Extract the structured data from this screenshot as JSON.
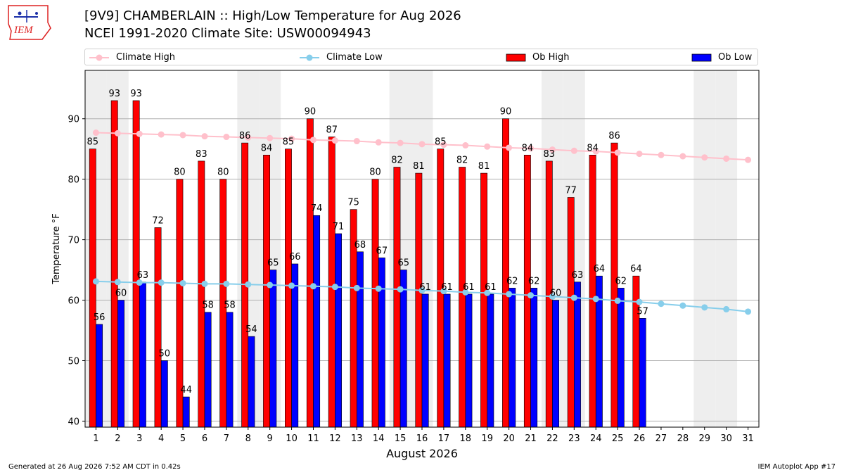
{
  "logo": {
    "text": "IEM"
  },
  "header": {
    "title_line1": "[9V9] CHAMBERLAIN :: High/Low Temperature for Aug 2026",
    "title_line2": "NCEI 1991-2020 Climate Site: USW00094943"
  },
  "legend": {
    "items": [
      "Climate High",
      "Climate Low",
      "Ob High",
      "Ob Low"
    ]
  },
  "footer": {
    "left": "Generated at 26 Aug 2026 7:52 AM CDT in 0.42s",
    "right": "IEM Autoplot App #17"
  },
  "chart_data": {
    "type": "bar",
    "xlabel": "August 2026",
    "ylabel": "Temperature °F",
    "ylim": [
      39,
      98
    ],
    "yticks": [
      40,
      50,
      60,
      70,
      80,
      90
    ],
    "days": [
      1,
      2,
      3,
      4,
      5,
      6,
      7,
      8,
      9,
      10,
      11,
      12,
      13,
      14,
      15,
      16,
      17,
      18,
      19,
      20,
      21,
      22,
      23,
      24,
      25,
      26,
      27,
      28,
      29,
      30,
      31
    ],
    "weekend_days": [
      1,
      2,
      8,
      9,
      15,
      16,
      22,
      23,
      29,
      30
    ],
    "grid": "horizontal",
    "legend_position": "top",
    "series": [
      {
        "name": "Ob High",
        "kind": "bar",
        "color": "#ff0000",
        "values": [
          85,
          93,
          93,
          72,
          80,
          83,
          80,
          86,
          84,
          85,
          90,
          87,
          75,
          80,
          82,
          81,
          85,
          82,
          81,
          90,
          84,
          83,
          77,
          84,
          86,
          64
        ],
        "labels": [
          "85",
          "93",
          "93",
          "72",
          "80",
          "83",
          "80",
          "86",
          "84",
          "85",
          "90",
          "87",
          "75",
          "80",
          "82",
          "81",
          "85",
          "82",
          "81",
          "90",
          "84",
          "83",
          "77",
          "84",
          "86",
          "64"
        ]
      },
      {
        "name": "Ob Low",
        "kind": "bar",
        "color": "#0000ff",
        "values": [
          56,
          60,
          63,
          50,
          44,
          58,
          58,
          54,
          65,
          66,
          74,
          71,
          68,
          67,
          65,
          61,
          61,
          61,
          61,
          62,
          62,
          60,
          63,
          64,
          62,
          57
        ],
        "labels": [
          "56",
          "60",
          "63",
          "50",
          "44",
          "58",
          "58",
          "54",
          "65",
          "66",
          "74",
          "71",
          "68",
          "67",
          "65",
          "61",
          "61",
          "61",
          "61",
          "62",
          "62",
          "60",
          "63",
          "64",
          "62",
          "57"
        ]
      },
      {
        "name": "Climate High",
        "kind": "line",
        "color": "#ffc0cb",
        "values": [
          87.7,
          87.6,
          87.5,
          87.4,
          87.3,
          87.1,
          87.0,
          86.9,
          86.8,
          86.7,
          86.5,
          86.4,
          86.3,
          86.1,
          86.0,
          85.8,
          85.7,
          85.6,
          85.4,
          85.2,
          85.1,
          84.9,
          84.7,
          84.6,
          84.4,
          84.2,
          84.0,
          83.8,
          83.6,
          83.4,
          83.2
        ]
      },
      {
        "name": "Climate Low",
        "kind": "line",
        "color": "#87ceeb",
        "values": [
          63.1,
          63.0,
          62.9,
          62.9,
          62.8,
          62.7,
          62.7,
          62.6,
          62.5,
          62.4,
          62.3,
          62.2,
          62.0,
          61.9,
          61.8,
          61.6,
          61.5,
          61.3,
          61.2,
          61.0,
          60.8,
          60.6,
          60.4,
          60.2,
          59.9,
          59.7,
          59.4,
          59.1,
          58.8,
          58.5,
          58.1
        ]
      }
    ]
  }
}
